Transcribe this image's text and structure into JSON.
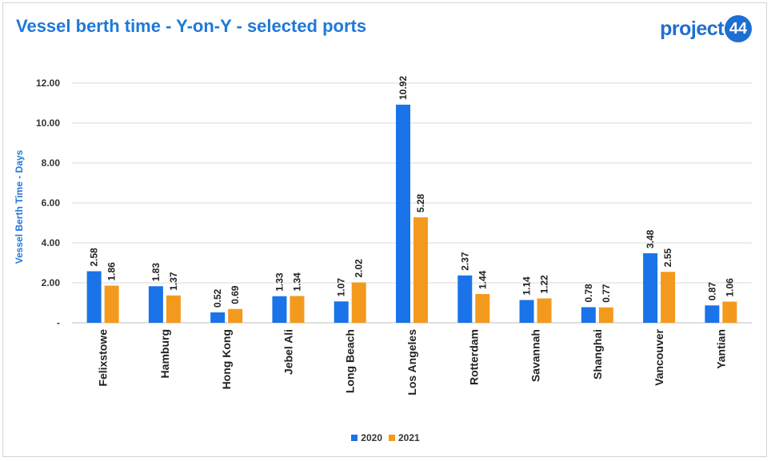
{
  "title": "Vessel berth time - Y-on-Y - selected ports",
  "logo": {
    "text": "project",
    "badge": "44"
  },
  "chart_data": {
    "type": "bar",
    "title": "Vessel berth time - Y-on-Y - selected ports",
    "ylabel": "Vessel Berth Time - Days",
    "xlabel": "",
    "ylim": [
      0,
      12
    ],
    "yticks": [
      {
        "value": 0,
        "label": "-"
      },
      {
        "value": 2,
        "label": "2.00"
      },
      {
        "value": 4,
        "label": "4.00"
      },
      {
        "value": 6,
        "label": "6.00"
      },
      {
        "value": 8,
        "label": "8.00"
      },
      {
        "value": 10,
        "label": "10.00"
      },
      {
        "value": 12,
        "label": "12.00"
      }
    ],
    "grid": true,
    "legend_position": "bottom",
    "categories": [
      "Felixstowe",
      "Hamburg",
      "Hong Kong",
      "Jebel Ali",
      "Long Beach",
      "Los Angeles",
      "Rotterdam",
      "Savannah",
      "Shanghai",
      "Vancouver",
      "Yantian"
    ],
    "series": [
      {
        "name": "2020",
        "color": "#1a73e8",
        "values": [
          2.58,
          1.83,
          0.52,
          1.33,
          1.07,
          10.92,
          2.37,
          1.14,
          0.78,
          3.48,
          0.87
        ]
      },
      {
        "name": "2021",
        "color": "#f39a1e",
        "values": [
          1.86,
          1.37,
          0.69,
          1.34,
          2.02,
          5.28,
          1.44,
          1.22,
          0.77,
          2.55,
          1.06
        ]
      }
    ]
  }
}
